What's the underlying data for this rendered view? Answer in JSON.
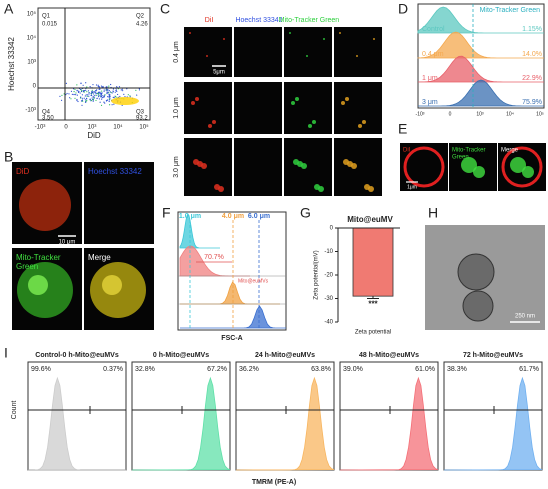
{
  "A": {
    "label": "A",
    "y_axis": "Hoechst 33342",
    "x_axis": "DiD",
    "quadrants": [
      {
        "name": "Q1",
        "value": "0.015"
      },
      {
        "name": "Q2",
        "value": "4.26"
      },
      {
        "name": "Q4",
        "value": "3.50"
      },
      {
        "name": "Q3",
        "value": "93.2"
      }
    ],
    "xticks": [
      "-10³",
      "0",
      "10³",
      "10⁴",
      "10⁵"
    ],
    "yticks": [
      "10⁵",
      "10⁴",
      "10³",
      "0",
      "-10³"
    ]
  },
  "B": {
    "label": "B",
    "channels": [
      "DiD",
      "Hoechst 33342",
      [
        "Mito-Tracker",
        "Green"
      ],
      "Merge"
    ],
    "scale": "10 μm"
  },
  "C": {
    "label": "C",
    "channels": [
      "DiI",
      "Hoechst 33342",
      "Mito-Tracker Green",
      "Merge"
    ],
    "rows": [
      "0.4 μm",
      "1.0 μm",
      "3.0 μm"
    ],
    "scale": "5μm"
  },
  "D": {
    "label": "D",
    "marker": "Mito-Tracker Green",
    "groups": [
      {
        "name": "Control",
        "percent": "1.15%",
        "color": "#5cc8c0"
      },
      {
        "name": "0.4 μm",
        "percent": "14.0%",
        "color": "#f4a84e"
      },
      {
        "name": "1 μm",
        "percent": "22.9%",
        "color": "#e8606a"
      },
      {
        "name": "3 μm",
        "percent": "75.9%",
        "color": "#3a6fb0"
      }
    ],
    "xticks": [
      "-10³",
      "0",
      "10³",
      "10⁴",
      "10⁵"
    ]
  },
  "E": {
    "label": "E",
    "channels": [
      "DiI",
      [
        "Mito-Tracker",
        "Green"
      ],
      "Merge"
    ],
    "scale": "1μm"
  },
  "F": {
    "label": "F",
    "sizes": [
      {
        "name": "1.0 μm",
        "color": "#3cc8d8"
      },
      {
        "name": "4.0 μm",
        "color": "#f0a040"
      },
      {
        "name": "6.0 μm",
        "color": "#3a6fd0"
      }
    ],
    "gate_percent": "70.7%",
    "sample": "Mito@euMVs",
    "x_axis": "FSC-A"
  },
  "G": {
    "label": "G",
    "type": "bar",
    "title": "Mito@euMV",
    "y_axis": "Zeta potential(mV)",
    "categories": [
      "Zeta potential"
    ],
    "values": [
      -29
    ],
    "errors": [
      1
    ],
    "ylim": [
      -40,
      0
    ],
    "yticks": [
      0,
      -10,
      -20,
      -30,
      -40
    ],
    "color": "#f07a72",
    "annotation": "***"
  },
  "H": {
    "label": "H",
    "scale": "250 nm"
  },
  "I": {
    "label": "I",
    "y_axis": "Count",
    "x_axis": "TMRM (PE-A)",
    "panels": [
      {
        "title": "Control-0 h-Mito@euMVs",
        "left": "99.6%",
        "right": "0.37%",
        "color": "#cccccc"
      },
      {
        "title": "0 h-Mito@euMVs",
        "left": "32.8%",
        "right": "67.2%",
        "color": "#5fe0a8"
      },
      {
        "title": "24 h-Mito@euMVs",
        "left": "36.2%",
        "right": "63.8%",
        "color": "#f8b660"
      },
      {
        "title": "48 h-Mito@euMVs",
        "left": "39.0%",
        "right": "61.0%",
        "color": "#f47078"
      },
      {
        "title": "72 h-Mito@euMVs",
        "left": "38.3%",
        "right": "61.7%",
        "color": "#70b0f0"
      }
    ]
  }
}
